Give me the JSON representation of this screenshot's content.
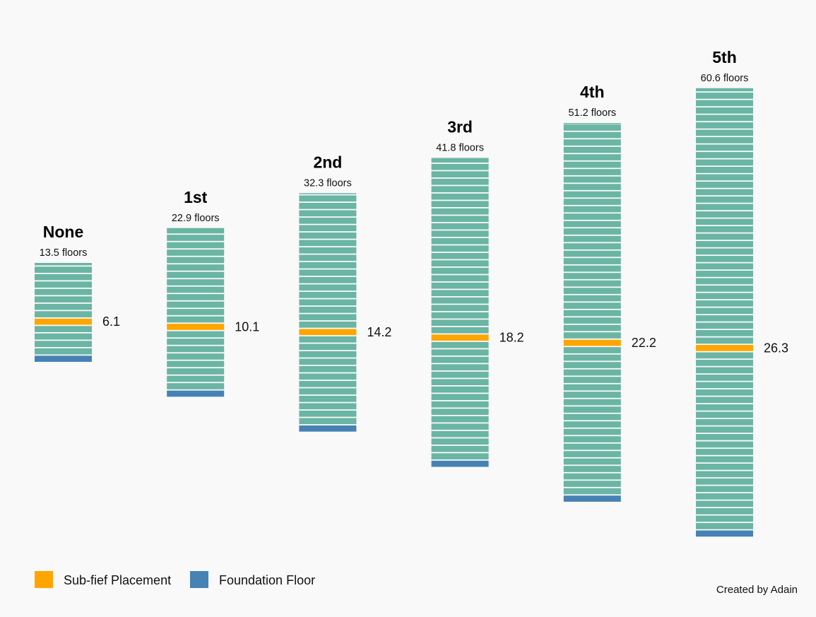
{
  "chart_data": {
    "type": "bar",
    "categories": [
      "None",
      "1st",
      "2nd",
      "3rd",
      "4th",
      "5th"
    ],
    "floor_labels": [
      "13.5 floors",
      "22.9 floors",
      "32.3 floors",
      "41.8 floors",
      "51.2 floors",
      "60.6 floors"
    ],
    "floors": [
      13.5,
      22.9,
      32.3,
      41.8,
      51.2,
      60.6
    ],
    "placement": [
      6.1,
      10.1,
      14.2,
      18.2,
      22.2,
      26.3
    ],
    "placement_labels": [
      "6.1",
      "10.1",
      "14.2",
      "18.2",
      "22.2",
      "26.3"
    ],
    "legend": [
      {
        "label": "Sub-fief Placement",
        "color": "#ffa500"
      },
      {
        "label": "Foundation Floor",
        "color": "#4682b4"
      }
    ],
    "credit": "Created by Adain",
    "colors": {
      "floor": "#6ab5a3",
      "placement": "#ffa500",
      "foundation": "#4682b4",
      "background": "#f9f9f9"
    }
  }
}
